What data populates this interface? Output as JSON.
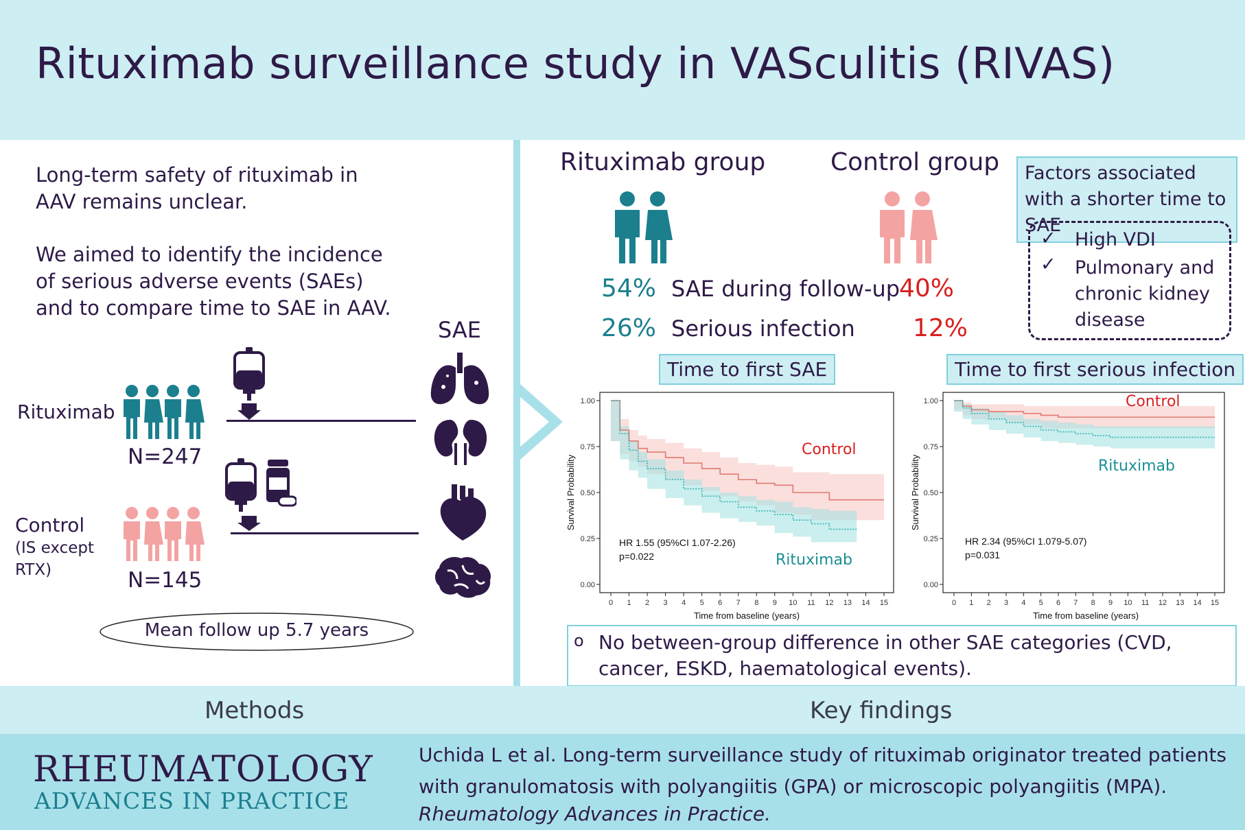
{
  "title": "Rituximab surveillance study in VASculitis (RIVAS)",
  "methods": {
    "intro1": "Long-term safety of rituximab in AAV remains unclear.",
    "intro2": "We aimed to identify the incidence of serious adverse events (SAEs) and to compare time to SAE in AAV.",
    "sae_label": "SAE",
    "rtx_label": "Rituximab",
    "rtx_n": "N=247",
    "control_label": "Control",
    "control_sub1": "(IS except",
    "control_sub2": "RTX)",
    "control_n": "N=145",
    "followup": "Mean follow up 5.7 years",
    "bar_label": "Methods"
  },
  "findings": {
    "rtx_group": "Rituximab group",
    "ctrl_group": "Control group",
    "row1": {
      "rtx": "54%",
      "label": "SAE during follow-up",
      "ctrl": "40%"
    },
    "row2": {
      "rtx": "26%",
      "label": "Serious infection",
      "ctrl": "12%"
    },
    "factors_title": "Factors associated with a shorter time to SAE",
    "factors": [
      "High VDI",
      "Pulmonary and chronic kidney disease"
    ],
    "check": "✓",
    "km1_title": "Time to first SAE",
    "km2_title": "Time to first serious infection",
    "bullet": "o",
    "note": "No between-group difference in other SAE categories (CVD, cancer, ESKD, haematological events).",
    "bar_label": "Key findings"
  },
  "chart_data": [
    {
      "type": "line",
      "title": "Time to first SAE",
      "xlabel": "Time from baseline (years)",
      "ylabel": "Survival Probability",
      "xlim": [
        0,
        15
      ],
      "ylim": [
        0,
        1
      ],
      "xticks": [
        "0",
        "1",
        "2",
        "3",
        "4",
        "5",
        "6",
        "7",
        "8",
        "9",
        "10",
        "11",
        "12",
        "13",
        "14",
        "15"
      ],
      "yticks": [
        "0.00",
        "0.25",
        "0.50",
        "0.75",
        "1.00"
      ],
      "series": [
        {
          "name": "Control",
          "color": "#e07a70",
          "band": "#f6c9c6",
          "x": [
            0,
            0.5,
            1,
            1.5,
            2,
            3,
            4,
            5,
            6,
            7,
            8,
            9,
            10,
            11,
            12,
            13,
            14,
            15
          ],
          "y": [
            1.0,
            0.84,
            0.78,
            0.74,
            0.72,
            0.69,
            0.66,
            0.63,
            0.6,
            0.57,
            0.55,
            0.54,
            0.5,
            0.5,
            0.46,
            0.46,
            0.46,
            0.46
          ],
          "lo": [
            1.0,
            0.78,
            0.71,
            0.67,
            0.64,
            0.6,
            0.57,
            0.54,
            0.51,
            0.48,
            0.45,
            0.43,
            0.39,
            0.38,
            0.35,
            0.35,
            0.35,
            0.35
          ],
          "hi": [
            1.0,
            0.9,
            0.84,
            0.81,
            0.79,
            0.77,
            0.74,
            0.72,
            0.69,
            0.66,
            0.65,
            0.64,
            0.61,
            0.61,
            0.6,
            0.6,
            0.6,
            0.6
          ]
        },
        {
          "name": "Rituximab",
          "color": "#2fb3b5",
          "band": "#a9e3e3",
          "x": [
            0,
            0.5,
            1,
            1.5,
            2,
            3,
            4,
            5,
            6,
            7,
            8,
            9,
            10,
            11,
            12,
            13,
            13.5
          ],
          "y": [
            1.0,
            0.82,
            0.73,
            0.67,
            0.63,
            0.57,
            0.52,
            0.48,
            0.45,
            0.42,
            0.4,
            0.38,
            0.35,
            0.33,
            0.3,
            0.3,
            0.3
          ],
          "lo": [
            1.0,
            0.78,
            0.68,
            0.62,
            0.58,
            0.52,
            0.47,
            0.43,
            0.39,
            0.36,
            0.34,
            0.32,
            0.28,
            0.26,
            0.23,
            0.23,
            0.23
          ],
          "hi": [
            1.0,
            0.86,
            0.78,
            0.72,
            0.68,
            0.62,
            0.57,
            0.53,
            0.5,
            0.48,
            0.46,
            0.45,
            0.42,
            0.41,
            0.4,
            0.4,
            0.4
          ]
        }
      ],
      "annotation": [
        "HR 1.55 (95%CI 1.07-2.26)",
        "p=0.022"
      ]
    },
    {
      "type": "line",
      "title": "Time to first serious infection",
      "xlabel": "Time from baseline (years)",
      "ylabel": "Survival Probability",
      "xlim": [
        0,
        15
      ],
      "ylim": [
        0,
        1
      ],
      "xticks": [
        "0",
        "1",
        "2",
        "3",
        "4",
        "5",
        "6",
        "7",
        "8",
        "9",
        "10",
        "11",
        "12",
        "13",
        "14",
        "15"
      ],
      "yticks": [
        "0.00",
        "0.25",
        "0.50",
        "0.75",
        "1.00"
      ],
      "series": [
        {
          "name": "Control",
          "color": "#e07a70",
          "band": "#f6c9c6",
          "x": [
            0,
            0.5,
            1,
            2,
            3,
            4,
            5,
            6,
            7,
            8,
            9,
            10,
            11,
            12,
            13,
            14,
            15
          ],
          "y": [
            1.0,
            0.97,
            0.95,
            0.94,
            0.94,
            0.93,
            0.92,
            0.91,
            0.91,
            0.91,
            0.91,
            0.91,
            0.91,
            0.91,
            0.91,
            0.91,
            0.91
          ],
          "lo": [
            1.0,
            0.95,
            0.92,
            0.9,
            0.9,
            0.88,
            0.87,
            0.85,
            0.85,
            0.85,
            0.85,
            0.85,
            0.85,
            0.85,
            0.85,
            0.85,
            0.85
          ],
          "hi": [
            1.0,
            0.99,
            0.98,
            0.98,
            0.98,
            0.97,
            0.97,
            0.97,
            0.97,
            0.97,
            0.97,
            0.97,
            0.97,
            0.97,
            0.97,
            0.97,
            0.97
          ]
        },
        {
          "name": "Rituximab",
          "color": "#2fb3b5",
          "band": "#a9e3e3",
          "x": [
            0,
            0.5,
            1,
            2,
            3,
            4,
            5,
            6,
            7,
            8,
            9,
            10,
            11,
            12,
            13,
            14,
            15
          ],
          "y": [
            1.0,
            0.96,
            0.93,
            0.9,
            0.88,
            0.86,
            0.84,
            0.83,
            0.82,
            0.81,
            0.8,
            0.8,
            0.8,
            0.8,
            0.8,
            0.8,
            0.8
          ],
          "lo": [
            1.0,
            0.94,
            0.9,
            0.87,
            0.84,
            0.82,
            0.8,
            0.78,
            0.77,
            0.76,
            0.75,
            0.74,
            0.74,
            0.74,
            0.74,
            0.74,
            0.74
          ],
          "hi": [
            1.0,
            0.98,
            0.96,
            0.94,
            0.92,
            0.9,
            0.89,
            0.88,
            0.87,
            0.86,
            0.86,
            0.86,
            0.86,
            0.86,
            0.86,
            0.86,
            0.86
          ]
        }
      ],
      "annotation": [
        "HR 2.34 (95%CI 1.079-5.07)",
        "p=0.031"
      ]
    }
  ],
  "footer": {
    "logo1": "RHEUMATOLOGY",
    "logo2": "ADVANCES IN PRACTICE",
    "citation": "Uchida L et al. Long-term surveillance study of rituximab originator treated patients with granulomatosis with polyangiitis (GPA) or microscopic polyangiitis (MPA).",
    "journal": "Rheumatology Advances in Practice."
  },
  "colors": {
    "teal": "#1b7f8e",
    "pink": "#f4a3a3",
    "red": "#d8201f",
    "dark": "#2e1a47",
    "light_blue": "#cdeef3"
  }
}
